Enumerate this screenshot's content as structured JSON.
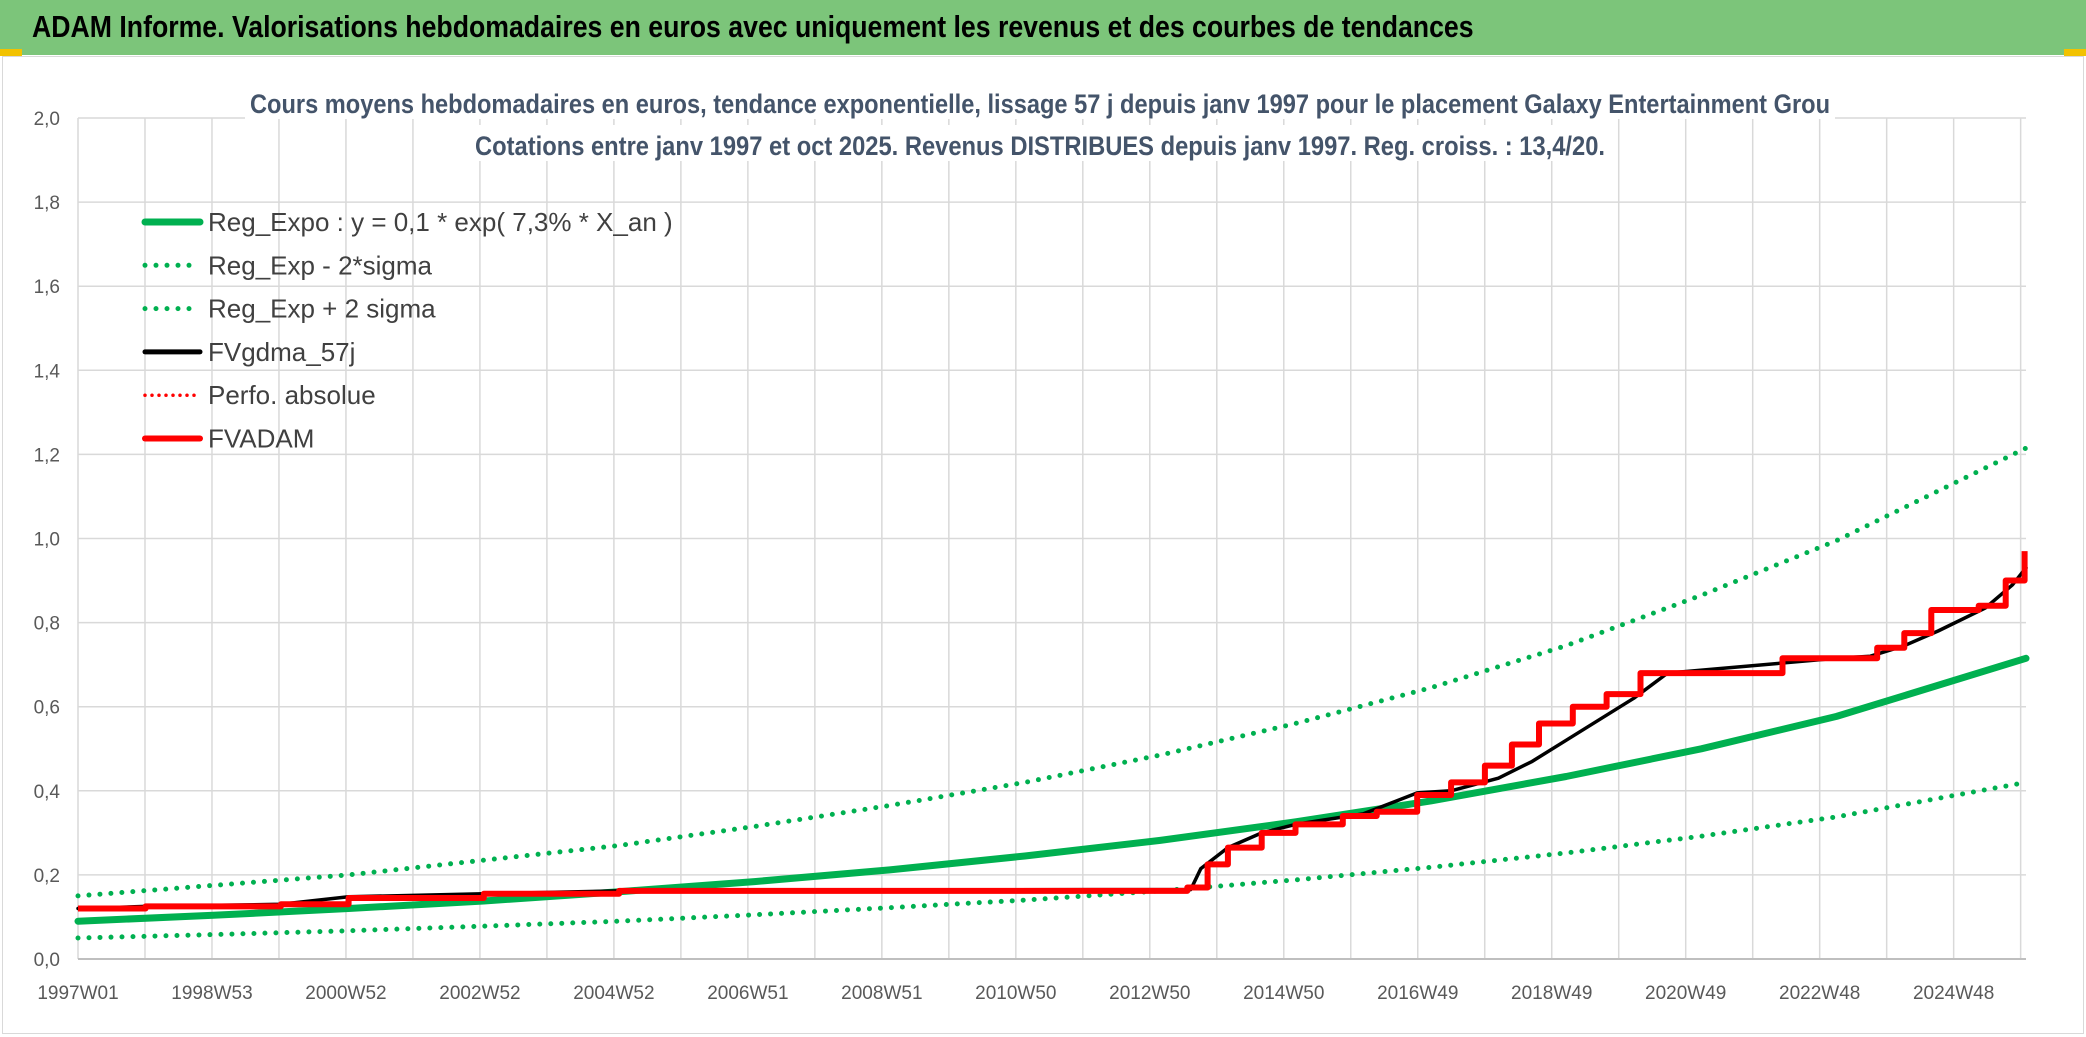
{
  "header": {
    "title": "ADAM Informe. Valorisations hebdomadaires en euros avec uniquement les revenus et des courbes de tendances"
  },
  "colors": {
    "banner": "#7cc57a",
    "corner_accent": "#f2c200",
    "green": "#00b050",
    "red": "#ff0000",
    "black": "#000000",
    "grid": "#d9d9d9"
  },
  "chart_data": {
    "type": "line",
    "title": [
      "Cours moyens hebdomadaires en euros, tendance exponentielle, lissage 57 j depuis janv 1997 pour le placement Galaxy Entertainment Grou",
      "Cotations entre janv 1997 et oct 2025. Revenus DISTRIBUES depuis janv 1997. Reg. croiss. : 13,4/20."
    ],
    "xlabel": "",
    "ylabel": "",
    "ylim": [
      0,
      2
    ],
    "x_range": [
      1997.0,
      2025.8
    ],
    "grid": true,
    "legend_position": "top-left",
    "y_tick_labels": [
      "0,0",
      "0,2",
      "0,4",
      "0,6",
      "0,8",
      "1,0",
      "1,2",
      "1,4",
      "1,6",
      "1,8",
      "2,0"
    ],
    "x_tick_labels": [
      "1997W01",
      "1998W53",
      "2000W52",
      "2002W52",
      "2004W52",
      "2006W51",
      "2008W51",
      "2010W50",
      "2012W50",
      "2014W50",
      "2016W49",
      "2018W49",
      "2020W49",
      "2022W48",
      "2024W48"
    ],
    "legend": [
      "Reg_Expo : y = 0,1 * exp( 7,3% *  X_an )",
      "Reg_Exp - 2*sigma",
      "Reg_Exp + 2 sigma",
      "FVgdma_57j",
      "Perfo. absolue",
      "FVADAM"
    ],
    "series": [
      {
        "name": "Reg_Expo : y = 0,1 * exp( 7,3% *  X_an )",
        "color": "#00b050",
        "style": "solid",
        "x": [
          1997.0,
          1999.0,
          2001.0,
          2003.0,
          2005.0,
          2007.0,
          2009.0,
          2011.0,
          2013.0,
          2015.0,
          2017.0,
          2019.0,
          2021.0,
          2023.0,
          2025.8
        ],
        "y": [
          0.09,
          0.104,
          0.12,
          0.138,
          0.16,
          0.184,
          0.212,
          0.245,
          0.282,
          0.326,
          0.376,
          0.434,
          0.5,
          0.577,
          0.715
        ]
      },
      {
        "name": "Reg_Exp - 2*sigma",
        "color": "#00b050",
        "style": "dotted",
        "x": [
          1997.0,
          1999.0,
          2001.0,
          2003.0,
          2005.0,
          2007.0,
          2009.0,
          2011.0,
          2013.0,
          2015.0,
          2017.0,
          2019.0,
          2021.0,
          2023.0,
          2025.8
        ],
        "y": [
          0.05,
          0.058,
          0.067,
          0.078,
          0.09,
          0.105,
          0.122,
          0.14,
          0.162,
          0.188,
          0.218,
          0.252,
          0.292,
          0.338,
          0.42
        ]
      },
      {
        "name": "Reg_Exp + 2 sigma",
        "color": "#00b050",
        "style": "dotted",
        "x": [
          1997.0,
          1999.0,
          2001.0,
          2003.0,
          2005.0,
          2007.0,
          2009.0,
          2011.0,
          2013.0,
          2015.0,
          2017.0,
          2019.0,
          2021.0,
          2023.0,
          2025.8
        ],
        "y": [
          0.15,
          0.175,
          0.2,
          0.235,
          0.27,
          0.315,
          0.365,
          0.42,
          0.485,
          0.56,
          0.645,
          0.745,
          0.865,
          0.995,
          1.215
        ]
      },
      {
        "name": "FVgdma_57j",
        "color": "#000000",
        "style": "solid",
        "x": [
          1997.0,
          1998.0,
          2000.0,
          2001.0,
          2003.0,
          2005.0,
          2012.0,
          2013.45,
          2013.6,
          2014.0,
          2014.5,
          2015.0,
          2016.0,
          2016.8,
          2017.3,
          2018.0,
          2018.5,
          2019.0,
          2019.5,
          2020.0,
          2020.5,
          2023.0,
          2023.5,
          2024.0,
          2024.5,
          2025.2,
          2025.6,
          2025.8
        ],
        "y": [
          0.12,
          0.125,
          0.13,
          0.148,
          0.155,
          0.162,
          0.165,
          0.165,
          0.215,
          0.265,
          0.3,
          0.32,
          0.345,
          0.395,
          0.4,
          0.43,
          0.47,
          0.52,
          0.57,
          0.62,
          0.68,
          0.715,
          0.72,
          0.745,
          0.78,
          0.835,
          0.89,
          0.93
        ]
      },
      {
        "name": "Perfo. absolue",
        "color": "#ff0000",
        "style": "dotted",
        "x": [],
        "y": []
      },
      {
        "name": "FVADAM",
        "color": "#ff0000",
        "style": "solid",
        "x": [
          1997.0,
          1998.0,
          1998.0,
          2000.0,
          2000.0,
          2001.0,
          2001.0,
          2003.0,
          2003.0,
          2005.0,
          2005.0,
          2013.4,
          2013.4,
          2013.7,
          2013.7,
          2014.0,
          2014.0,
          2014.5,
          2014.5,
          2015.0,
          2015.0,
          2015.7,
          2015.7,
          2016.2,
          2016.2,
          2016.8,
          2016.8,
          2017.3,
          2017.3,
          2017.8,
          2017.8,
          2018.2,
          2018.2,
          2018.6,
          2018.6,
          2019.1,
          2019.1,
          2019.6,
          2019.6,
          2020.1,
          2020.1,
          2020.6,
          2020.6,
          2022.2,
          2022.2,
          2023.6,
          2023.6,
          2024.0,
          2024.0,
          2024.4,
          2024.4,
          2025.1,
          2025.1,
          2025.5,
          2025.5,
          2025.78,
          2025.78
        ],
        "y": [
          0.12,
          0.12,
          0.125,
          0.125,
          0.13,
          0.13,
          0.145,
          0.145,
          0.155,
          0.155,
          0.162,
          0.162,
          0.17,
          0.17,
          0.225,
          0.225,
          0.265,
          0.265,
          0.3,
          0.3,
          0.32,
          0.32,
          0.34,
          0.34,
          0.35,
          0.35,
          0.39,
          0.39,
          0.42,
          0.42,
          0.46,
          0.46,
          0.51,
          0.51,
          0.56,
          0.56,
          0.6,
          0.6,
          0.63,
          0.63,
          0.68,
          0.68,
          0.68,
          0.68,
          0.715,
          0.715,
          0.74,
          0.74,
          0.775,
          0.775,
          0.83,
          0.83,
          0.84,
          0.84,
          0.9,
          0.9,
          0.97
        ]
      }
    ]
  }
}
